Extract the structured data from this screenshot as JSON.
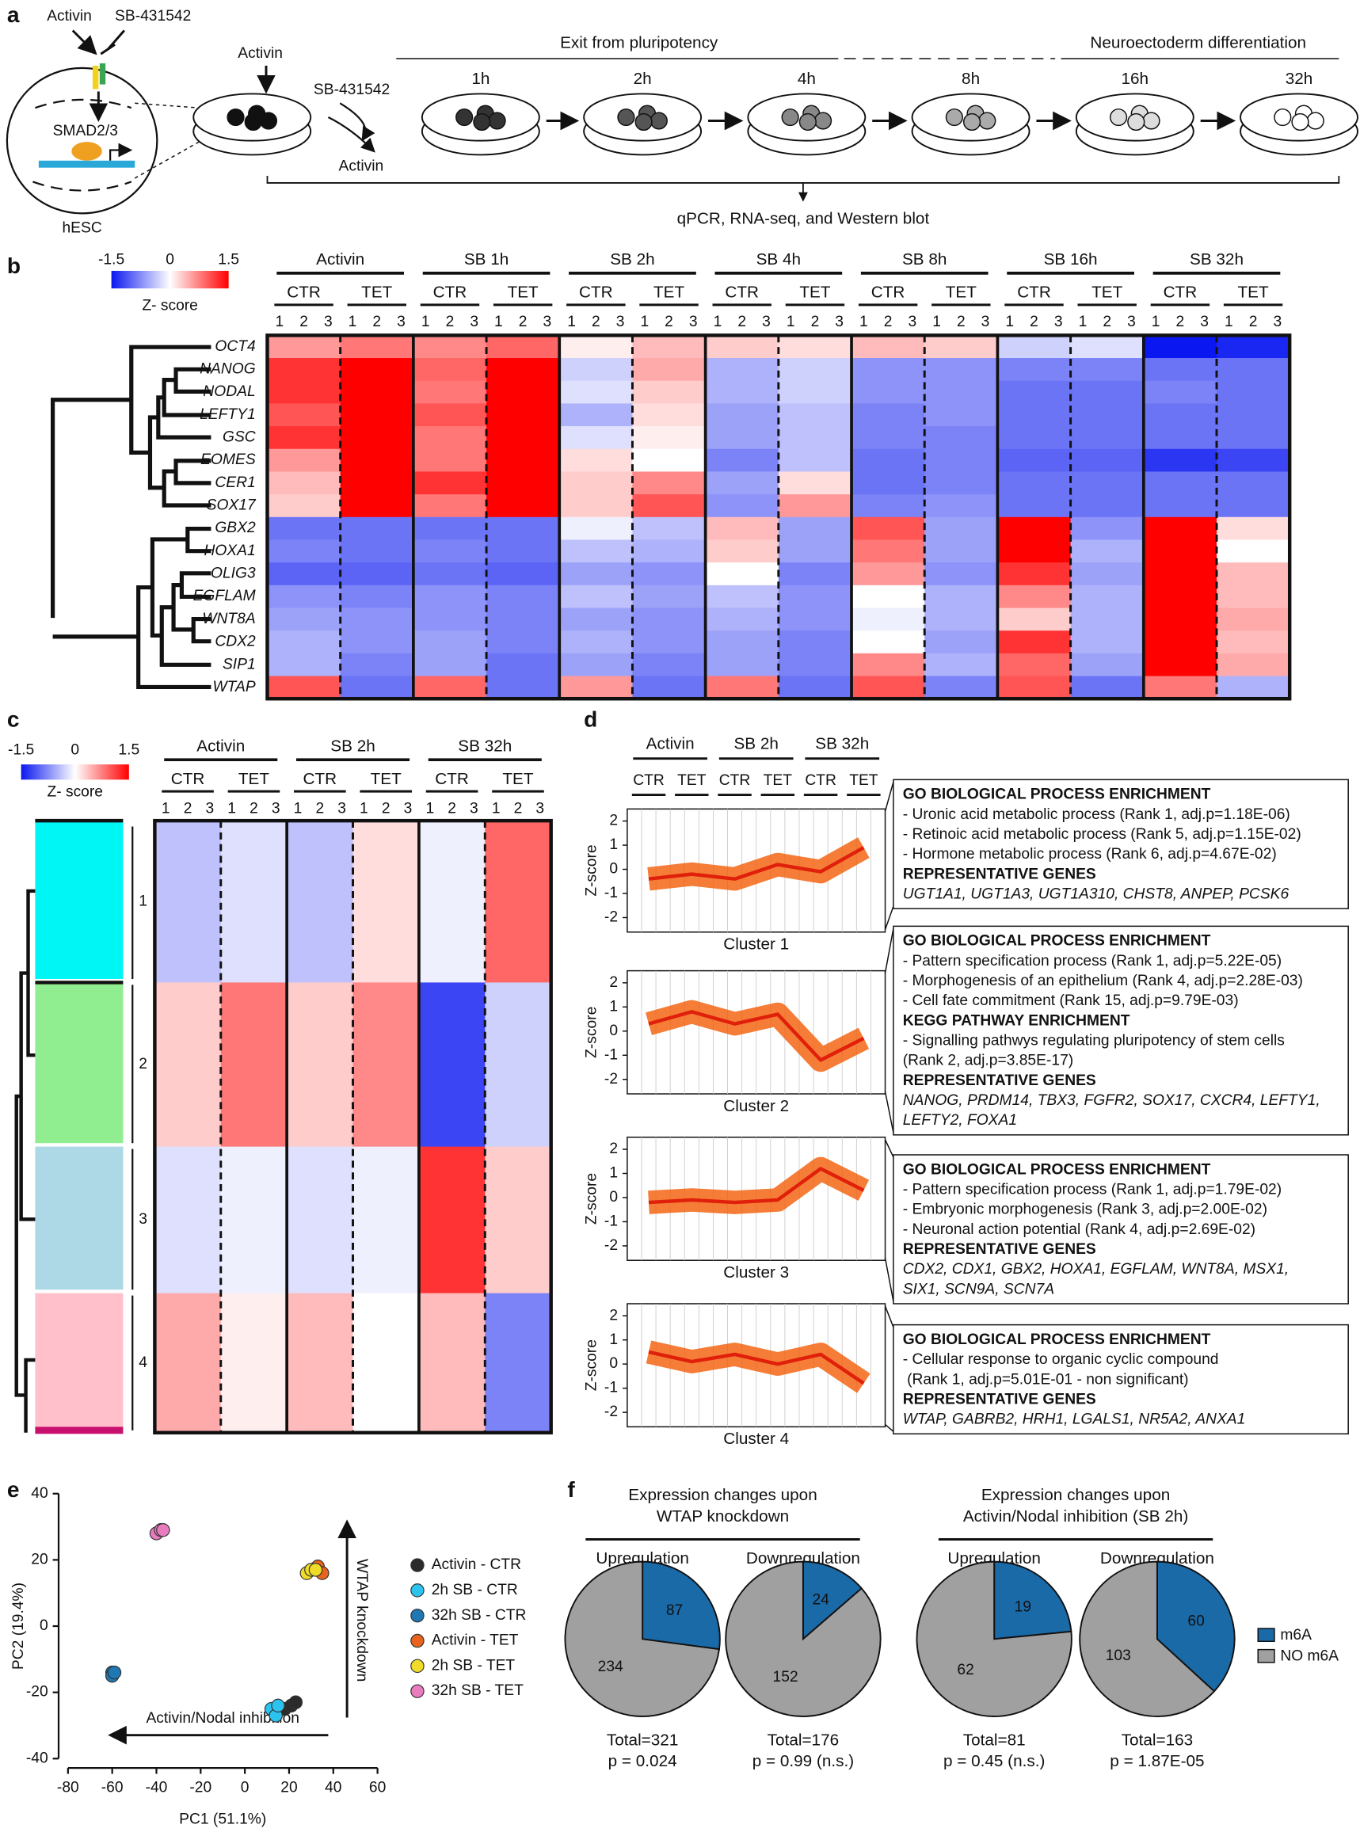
{
  "panel_a": {
    "label": "a",
    "stimulus": "Activin",
    "inhibitor": "SB-431542",
    "smad": "SMAD2/3",
    "cell": "hESC",
    "dish_activin": "Activin",
    "dish_sb": "SB-431542",
    "removed": "Activin",
    "phase1": "Exit from pluripotency",
    "phase2": "Neuroectoderm differentiation",
    "times": [
      "1h",
      "2h",
      "4h",
      "8h",
      "16h",
      "32h"
    ],
    "readout": "qPCR, RNA-seq, and Western blot"
  },
  "panel_b": {
    "label": "b",
    "type": "heatmap",
    "colorbar": {
      "ticks": [
        -1.5,
        0,
        1.5
      ],
      "label": "Z- score"
    },
    "timepoints": [
      "Activin",
      "SB 1h",
      "SB 2h",
      "SB 4h",
      "SB 8h",
      "SB 16h",
      "SB 32h"
    ],
    "conditions": [
      "CTR",
      "TET"
    ],
    "replicates": [
      1,
      2,
      3
    ],
    "genes": [
      "OCT4",
      "NANOG",
      "NODAL",
      "LEFTY1",
      "GSC",
      "EOMES",
      "CER1",
      "SOX17",
      "GBX2",
      "HOXA1",
      "OLIG3",
      "EGFLAM",
      "WNT8A",
      "CDX2",
      "SIP1",
      "WTAP"
    ],
    "values": [
      [
        0.6,
        0.8,
        0.7,
        0.9,
        0.1,
        0.4,
        0.3,
        0.2,
        0.4,
        0.3,
        -0.3,
        -0.2,
        -1.5,
        -1.4
      ],
      [
        1.2,
        1.5,
        0.9,
        1.5,
        -0.3,
        0.5,
        -0.5,
        -0.3,
        -0.7,
        -0.7,
        -0.8,
        -0.8,
        -0.9,
        -0.9
      ],
      [
        1.2,
        1.5,
        0.8,
        1.5,
        -0.2,
        0.3,
        -0.5,
        -0.3,
        -0.7,
        -0.7,
        -0.9,
        -0.9,
        -0.8,
        -0.9
      ],
      [
        1.0,
        1.5,
        1.0,
        1.5,
        -0.5,
        0.2,
        -0.6,
        -0.4,
        -0.8,
        -0.7,
        -0.9,
        -0.9,
        -0.9,
        -0.9
      ],
      [
        1.2,
        1.5,
        0.8,
        1.5,
        -0.2,
        0.1,
        -0.6,
        -0.4,
        -0.8,
        -0.8,
        -0.9,
        -0.9,
        -0.9,
        -0.9
      ],
      [
        0.6,
        1.5,
        0.8,
        1.5,
        0.2,
        0.0,
        -0.8,
        -0.4,
        -0.9,
        -0.8,
        -1.0,
        -1.0,
        -1.3,
        -1.2
      ],
      [
        0.4,
        1.5,
        1.2,
        1.5,
        0.3,
        0.7,
        -0.6,
        0.2,
        -0.9,
        -0.8,
        -0.9,
        -0.9,
        -0.9,
        -0.9
      ],
      [
        0.3,
        1.5,
        0.8,
        1.5,
        0.3,
        1.0,
        -0.7,
        0.6,
        -0.8,
        -0.7,
        -0.9,
        -0.9,
        -0.9,
        -0.9
      ],
      [
        -0.9,
        -0.9,
        -0.9,
        -0.9,
        -0.1,
        -0.4,
        0.4,
        -0.6,
        1.0,
        -0.6,
        1.5,
        -0.7,
        1.5,
        0.2
      ],
      [
        -0.8,
        -0.9,
        -0.8,
        -0.9,
        -0.4,
        -0.5,
        0.3,
        -0.6,
        0.8,
        -0.6,
        1.5,
        -0.5,
        1.5,
        0.0
      ],
      [
        -1.0,
        -1.0,
        -0.9,
        -1.0,
        -0.6,
        -0.7,
        0.0,
        -0.8,
        0.6,
        -0.7,
        1.2,
        -0.6,
        1.5,
        0.4
      ],
      [
        -0.7,
        -0.8,
        -0.7,
        -0.8,
        -0.4,
        -0.6,
        -0.4,
        -0.7,
        0.0,
        -0.5,
        0.7,
        -0.5,
        1.5,
        0.4
      ],
      [
        -0.6,
        -0.7,
        -0.7,
        -0.8,
        -0.6,
        -0.7,
        -0.5,
        -0.7,
        -0.1,
        -0.5,
        0.3,
        -0.5,
        1.5,
        0.5
      ],
      [
        -0.5,
        -0.7,
        -0.6,
        -0.8,
        -0.5,
        -0.7,
        -0.6,
        -0.8,
        0.0,
        -0.6,
        1.2,
        -0.5,
        1.5,
        0.4
      ],
      [
        -0.5,
        -0.8,
        -0.6,
        -0.9,
        -0.6,
        -0.8,
        -0.6,
        -0.8,
        0.7,
        -0.5,
        0.9,
        -0.6,
        1.5,
        0.5
      ],
      [
        1.0,
        -0.9,
        0.9,
        -0.9,
        0.6,
        -0.9,
        0.8,
        -0.9,
        1.0,
        -0.8,
        1.0,
        -0.9,
        0.8,
        -0.5
      ]
    ]
  },
  "panel_c": {
    "label": "c",
    "type": "heatmap",
    "colorbar": {
      "ticks": [
        -1.5,
        0,
        1.5
      ],
      "label": "Z- score"
    },
    "timepoints": [
      "Activin",
      "SB 2h",
      "SB 32h"
    ],
    "conditions": [
      "CTR",
      "TET"
    ],
    "replicates": [
      1,
      2,
      3
    ],
    "clusters": [
      1,
      2,
      3,
      4
    ],
    "values": [
      [
        -0.4,
        -0.2,
        -0.4,
        0.2,
        -0.1,
        0.9
      ],
      [
        0.3,
        0.8,
        0.3,
        0.7,
        -1.2,
        -0.3
      ],
      [
        -0.2,
        -0.1,
        -0.2,
        -0.1,
        1.2,
        0.3
      ],
      [
        0.5,
        0.1,
        0.4,
        0.0,
        0.4,
        -0.8
      ]
    ]
  },
  "panel_d": {
    "label": "d",
    "type": "line",
    "timepoints": [
      "Activin",
      "SB 2h",
      "SB 32h"
    ],
    "conditions": [
      "CTR",
      "TET"
    ],
    "y_label": "Z-score",
    "ylim": [
      -2.6,
      2.5
    ],
    "yticks": [
      2,
      1,
      0,
      -1,
      -2
    ],
    "color": "#f25c05",
    "clusters": [
      {
        "name": "Cluster 1",
        "values": [
          -0.4,
          -0.2,
          -0.4,
          0.2,
          -0.1,
          0.9
        ],
        "sections": [
          {
            "heading": "GO BIOLOGICAL PROCESS ENRICHMENT",
            "items": [
              "- Uronic acid metabolic process (Rank 1, adj.p=1.18E-06)",
              "- Retinoic acid metabolic process (Rank 5, adj.p=1.15E-02)",
              "- Hormone metabolic process (Rank 6, adj.p=4.67E-02)"
            ]
          },
          {
            "heading": "REPRESENTATIVE GENES",
            "genes": [
              "UGT1A1, UGT1A3, UGT1A310, CHST8, ANPEP, PCSK6"
            ]
          }
        ]
      },
      {
        "name": "Cluster 2",
        "values": [
          0.3,
          0.8,
          0.3,
          0.7,
          -1.2,
          -0.3
        ],
        "sections": [
          {
            "heading": "GO BIOLOGICAL PROCESS ENRICHMENT",
            "items": [
              "- Pattern specification process (Rank 1, adj.p=5.22E-05)",
              "- Morphogenesis of an epithelium (Rank 4, adj.p=2.28E-03)",
              "- Cell fate commitment (Rank 15, adj.p=9.79E-03)"
            ]
          },
          {
            "heading": "KEGG PATHWAY ENRICHMENT",
            "items": [
              "- Signalling pathwys regulating pluripotency of stem cells",
              "(Rank 2, adj.p=3.85E-17)"
            ]
          },
          {
            "heading": "REPRESENTATIVE GENES",
            "genes": [
              "NANOG, PRDM14, TBX3, FGFR2, SOX17, CXCR4, LEFTY1,",
              "LEFTY2, FOXA1"
            ]
          }
        ]
      },
      {
        "name": "Cluster 3",
        "values": [
          -0.2,
          -0.1,
          -0.2,
          -0.1,
          1.2,
          0.3
        ],
        "sections": [
          {
            "heading": "GO BIOLOGICAL PROCESS ENRICHMENT",
            "items": [
              "- Pattern specification process (Rank 1, adj.p=1.79E-02)",
              "- Embryonic morphogenesis (Rank 3, adj.p=2.00E-02)",
              "- Neuronal action potential (Rank 4, adj.p=2.69E-02)"
            ]
          },
          {
            "heading": "REPRESENTATIVE GENES",
            "genes": [
              "CDX2, CDX1, GBX2, HOXA1, EGFLAM, WNT8A, MSX1,",
              "SIX1, SCN9A, SCN7A"
            ]
          }
        ]
      },
      {
        "name": "Cluster 4",
        "values": [
          0.5,
          0.1,
          0.4,
          0.0,
          0.4,
          -0.8
        ],
        "sections": [
          {
            "heading": "GO BIOLOGICAL PROCESS ENRICHMENT",
            "items": [
              "- Cellular response to organic cyclic compound",
              " (Rank 1, adj.p=5.01E-01 - non significant)"
            ]
          },
          {
            "heading": "REPRESENTATIVE GENES",
            "genes": [
              "WTAP, GABRB2, HRH1, LGALS1, NR5A2, ANXA1"
            ]
          }
        ]
      }
    ]
  },
  "panel_e": {
    "label": "e",
    "type": "scatter",
    "x_label": "PC1 (51.1%)",
    "y_label": "PC2 (19.4%)",
    "xlim": [
      -80,
      60
    ],
    "xticks": [
      -80,
      -60,
      -40,
      -20,
      0,
      20,
      40,
      60
    ],
    "ylim": [
      -40,
      40
    ],
    "yticks": [
      -40,
      -20,
      0,
      20,
      40
    ],
    "annotations": [
      "WTAP knockdown",
      "Activin/Nodal inhibition"
    ],
    "series": [
      {
        "name": "Activin - CTR",
        "color": "#2b2b2b",
        "x": [
          18,
          21,
          23
        ],
        "y": [
          -25,
          -24,
          -23
        ]
      },
      {
        "name": "2h SB - CTR",
        "color": "#2cc3ef",
        "x": [
          12,
          14,
          15
        ],
        "y": [
          -25,
          -27,
          -24
        ]
      },
      {
        "name": "32h SB - CTR",
        "color": "#1f77b4",
        "x": [
          -60,
          -60,
          -59
        ],
        "y": [
          -14,
          -15,
          -14
        ]
      },
      {
        "name": "Activin - TET",
        "color": "#e8641e",
        "x": [
          30,
          33,
          35
        ],
        "y": [
          17,
          18,
          16
        ]
      },
      {
        "name": "2h SB - TET",
        "color": "#f0dc28",
        "x": [
          28,
          30,
          32
        ],
        "y": [
          16,
          17,
          17
        ]
      },
      {
        "name": "32h SB - TET",
        "color": "#e87cbf",
        "x": [
          -40,
          -38,
          -37
        ],
        "y": [
          28,
          29,
          29
        ]
      }
    ]
  },
  "panel_f": {
    "label": "f",
    "type": "pie",
    "groups": [
      {
        "title": [
          "Expression changes upon",
          "WTAP knockdown"
        ]
      },
      {
        "title": [
          "Expression changes upon",
          "Activin/Nodal inhibition (SB 2h)"
        ]
      }
    ],
    "categories": [
      "m6A",
      "NO m6A"
    ],
    "colors": [
      "#1a6aa8",
      "#a0a0a0"
    ],
    "pies": [
      {
        "title": "Upregulation",
        "values": [
          87,
          234
        ],
        "total": "Total=321",
        "p": "p = 0.024"
      },
      {
        "title": "Downregulation",
        "values": [
          24,
          152
        ],
        "total": "Total=176",
        "p": "p = 0.99 (n.s.)"
      },
      {
        "title": "Upregulation",
        "values": [
          19,
          62
        ],
        "total": "Total=81",
        "p": "p = 0.45 (n.s.)"
      },
      {
        "title": "Downregulation",
        "values": [
          60,
          103
        ],
        "total": "Total=163",
        "p": "p = 1.87E-05"
      }
    ]
  }
}
